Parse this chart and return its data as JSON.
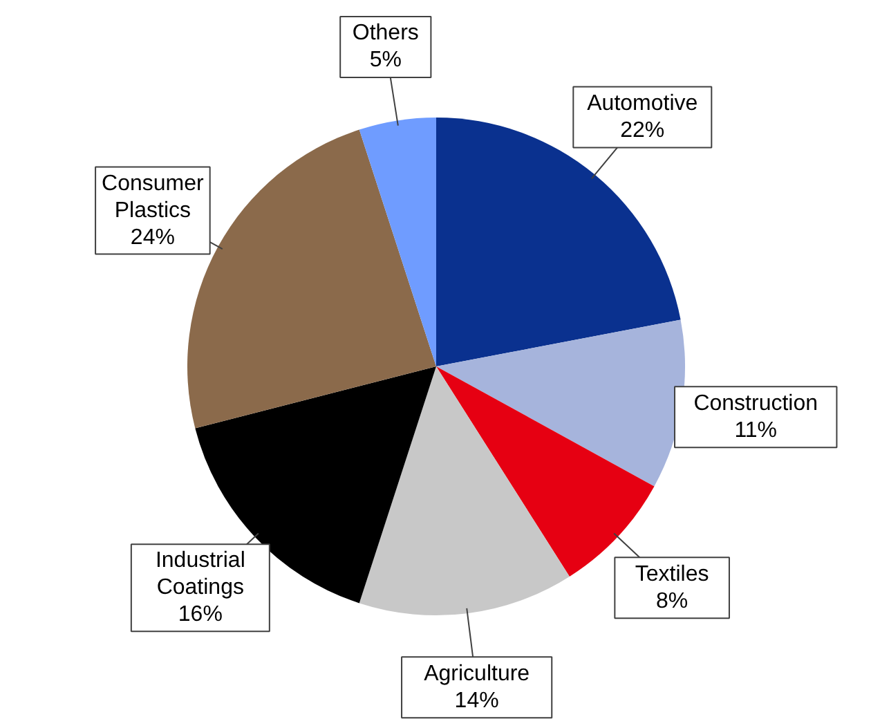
{
  "chart_data": {
    "type": "pie",
    "categories": [
      "Automotive",
      "Construction",
      "Textiles",
      "Agriculture",
      "Industrial Coatings",
      "Consumer Plastics",
      "Others"
    ],
    "values": [
      22,
      11,
      8,
      14,
      16,
      24,
      5
    ],
    "value_labels": [
      "22%",
      "11%",
      "8%",
      "14%",
      "16%",
      "24%",
      "5%"
    ],
    "colors": [
      "#0a318f",
      "#a6b4dc",
      "#e60012",
      "#c8c8c8",
      "#000000",
      "#8b6a4b",
      "#6f9cff"
    ]
  }
}
